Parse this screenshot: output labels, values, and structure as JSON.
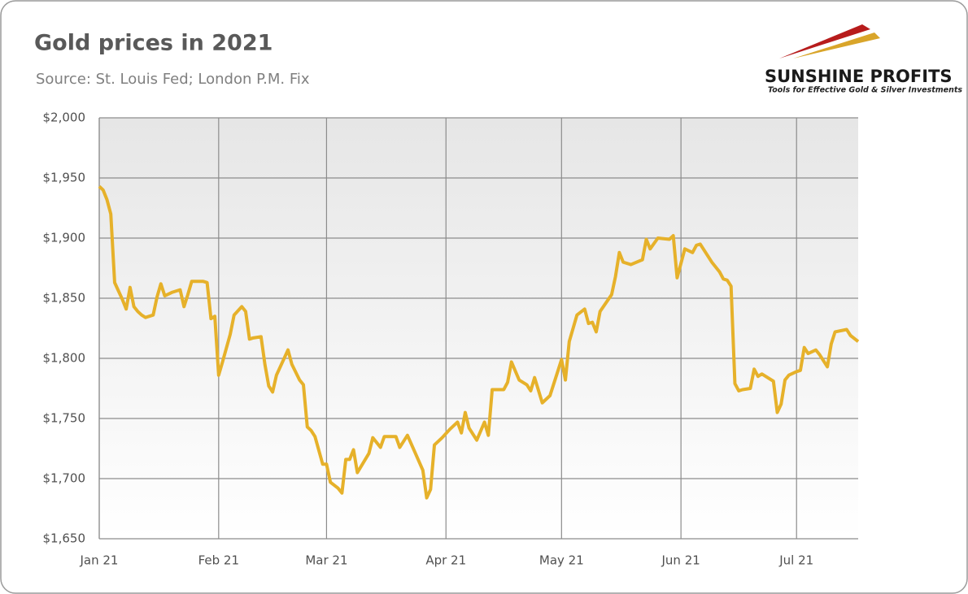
{
  "chart_data": {
    "type": "line",
    "title": "Gold prices in 2021",
    "subtitle": "Source: St. Louis Fed; London P.M. Fix",
    "x": [
      0,
      1,
      2,
      3,
      4,
      5,
      6,
      7,
      8,
      9,
      10,
      11,
      12,
      14,
      15,
      16,
      17,
      19,
      21,
      22,
      23,
      24,
      27,
      28,
      29,
      30,
      31,
      32,
      34,
      35,
      37,
      38,
      39,
      40,
      42,
      43,
      44,
      45,
      46,
      49,
      50,
      52,
      53,
      54,
      55,
      56,
      58,
      59,
      60,
      62,
      63,
      64,
      65,
      66,
      67,
      70,
      71,
      73,
      74,
      77,
      78,
      80,
      84,
      85,
      86,
      87,
      89,
      91,
      93,
      94,
      95,
      96,
      97,
      98,
      100,
      101,
      102,
      105,
      106,
      107,
      109,
      111,
      112,
      113,
      115,
      117,
      120,
      121,
      122,
      124,
      126,
      127,
      128,
      129,
      130,
      133,
      134,
      135,
      136,
      138,
      141,
      142,
      143,
      145,
      148,
      149,
      150,
      152,
      154,
      155,
      156,
      159,
      161,
      162,
      163,
      164,
      165,
      166,
      167,
      169,
      170,
      171,
      172,
      173,
      175,
      176,
      177,
      178,
      179,
      181,
      182,
      183,
      184,
      186,
      187,
      189,
      190,
      191,
      194,
      195,
      197
    ],
    "series": [
      {
        "name": "Gold price",
        "color": "#e6b12a",
        "values": [
          1943,
          1940,
          1932,
          1920,
          1863,
          1856,
          1849,
          1841,
          1859,
          1843,
          1839,
          1836,
          1834,
          1836,
          1851,
          1862,
          1852,
          1855,
          1857,
          1843,
          1853,
          1864,
          1864,
          1863,
          1833,
          1835,
          1786,
          1797,
          1820,
          1836,
          1843,
          1839,
          1816,
          1817,
          1818,
          1795,
          1777,
          1772,
          1786,
          1807,
          1795,
          1782,
          1778,
          1743,
          1740,
          1735,
          1712,
          1712,
          1697,
          1692,
          1688,
          1716,
          1716,
          1724,
          1705,
          1721,
          1734,
          1726,
          1735,
          1735,
          1726,
          1736,
          1707,
          1684,
          1691,
          1728,
          1734,
          1741,
          1747,
          1738,
          1755,
          1742,
          1737,
          1732,
          1747,
          1736,
          1774,
          1774,
          1780,
          1797,
          1782,
          1778,
          1773,
          1784,
          1763,
          1769,
          1799,
          1782,
          1814,
          1836,
          1841,
          1829,
          1830,
          1822,
          1839,
          1853,
          1868,
          1888,
          1880,
          1878,
          1882,
          1899,
          1891,
          1900,
          1899,
          1902,
          1867,
          1891,
          1888,
          1894,
          1895,
          1880,
          1872,
          1866,
          1865,
          1860,
          1779,
          1773,
          1774,
          1775,
          1791,
          1785,
          1787,
          1785,
          1781,
          1755,
          1762,
          1782,
          1786,
          1789,
          1790,
          1809,
          1804,
          1807,
          1803,
          1793,
          1812,
          1822,
          1824,
          1819,
          1814
        ]
      }
    ],
    "xlim": [
      0,
      197
    ],
    "xticks": [
      {
        "value": 0,
        "label": "Jan 21"
      },
      {
        "value": 31,
        "label": "Feb 21"
      },
      {
        "value": 59,
        "label": "Mar 21"
      },
      {
        "value": 90,
        "label": "Apr 21"
      },
      {
        "value": 120,
        "label": "May 21"
      },
      {
        "value": 151,
        "label": "Jun 21"
      },
      {
        "value": 181,
        "label": "Jul 21"
      }
    ],
    "ylim": [
      1650,
      2000
    ],
    "yticks": [
      {
        "value": 1650,
        "label": "$1,650"
      },
      {
        "value": 1700,
        "label": "$1,700"
      },
      {
        "value": 1750,
        "label": "$1,750"
      },
      {
        "value": 1800,
        "label": "$1,800"
      },
      {
        "value": 1850,
        "label": "$1,850"
      },
      {
        "value": 1900,
        "label": "$1,900"
      },
      {
        "value": 1950,
        "label": "$1,950"
      },
      {
        "value": 2000,
        "label": "$2,000"
      }
    ],
    "grid": true
  },
  "logo": {
    "name": "SUNSHINE PROFITS",
    "tagline": "Tools for Effective Gold & Silver Investments"
  }
}
